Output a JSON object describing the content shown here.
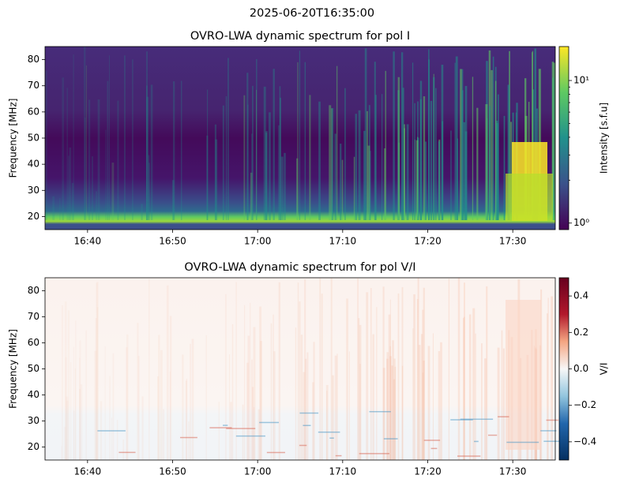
{
  "title": "2025-06-20T16:35:00",
  "chart_data": [
    {
      "type": "heatmap",
      "title": "OVRO-LWA dynamic spectrum for pol I",
      "ylabel": "Frequency [MHz]",
      "xlim": [
        "16:35",
        "17:35"
      ],
      "xticks": [
        "16:40",
        "16:50",
        "17:00",
        "17:10",
        "17:20",
        "17:30"
      ],
      "ylim": [
        15,
        85
      ],
      "yticks": [
        20,
        30,
        40,
        50,
        60,
        70,
        80
      ],
      "colormap": "viridis",
      "color_scale": "log",
      "colorbar_label": "Intensity [s.f.u]",
      "clim": [
        0.9,
        17.3
      ],
      "cticks": [
        {
          "value": 1,
          "label": "10⁰"
        },
        {
          "value": 10,
          "label": "10¹"
        }
      ]
    },
    {
      "type": "heatmap",
      "title": "OVRO-LWA dynamic spectrum for pol V/I",
      "ylabel": "Frequency [MHz]",
      "xlim": [
        "16:35",
        "17:35"
      ],
      "xticks": [
        "16:40",
        "16:50",
        "17:00",
        "17:10",
        "17:20",
        "17:30"
      ],
      "ylim": [
        15,
        85
      ],
      "yticks": [
        20,
        30,
        40,
        50,
        60,
        70,
        80
      ],
      "colormap": "RdBu_r",
      "color_scale": "linear",
      "colorbar_label": "V/I",
      "clim": [
        -0.5,
        0.5
      ],
      "cticks": [
        {
          "value": -0.4,
          "label": "−0.4"
        },
        {
          "value": -0.2,
          "label": "−0.2"
        },
        {
          "value": 0,
          "label": "0.0"
        },
        {
          "value": 0.2,
          "label": "0.2"
        },
        {
          "value": 0.4,
          "label": "0.4"
        }
      ]
    }
  ]
}
